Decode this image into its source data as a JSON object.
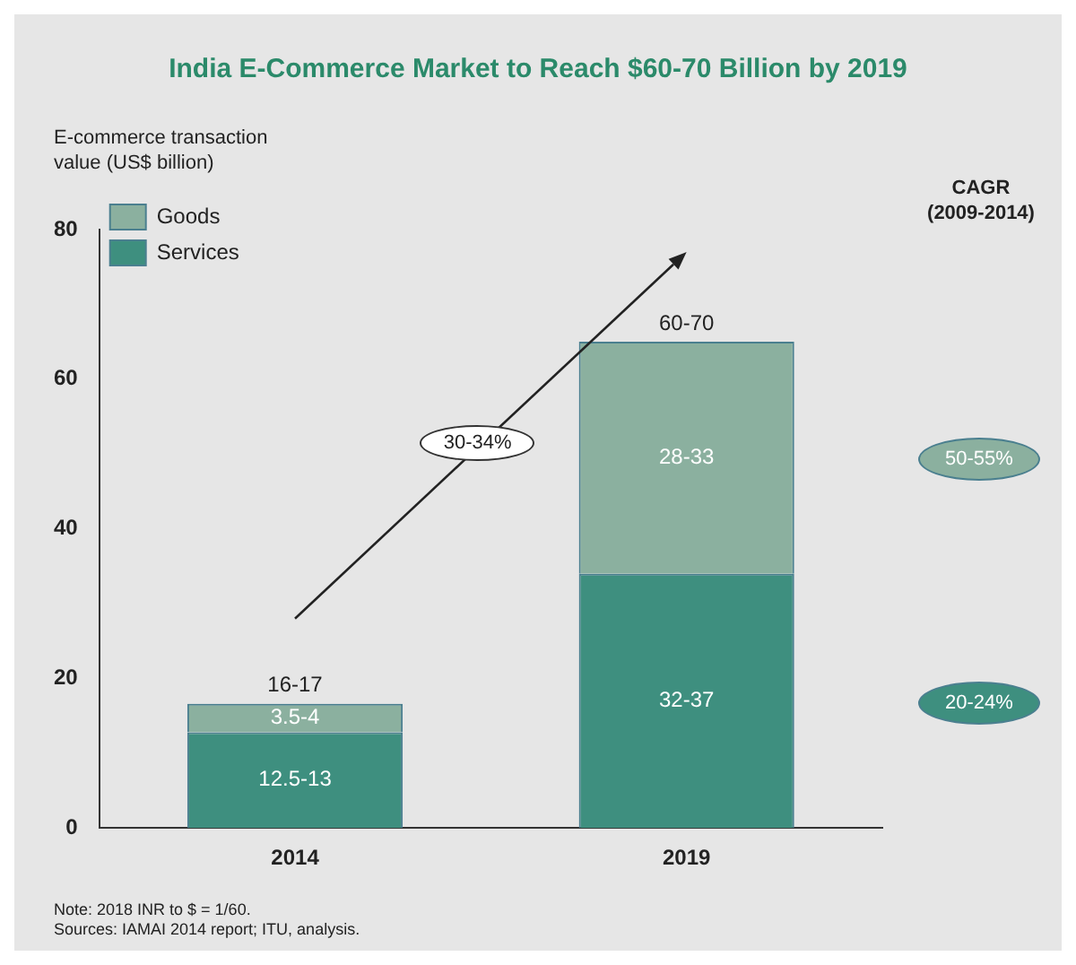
{
  "chart_data": {
    "type": "bar",
    "title": "India E-Commerce Market to Reach $60-70 Billion by 2019",
    "ylabel": "E-commerce transaction value (US$ billion)",
    "categories": [
      "2014",
      "2019"
    ],
    "stacked": true,
    "series": [
      {
        "name": "Services",
        "color": "#3e8f7f",
        "values": [
          12.8,
          34
        ],
        "value_labels": [
          "12.5-13",
          "32-37"
        ]
      },
      {
        "name": "Goods",
        "color": "#8bb09f",
        "values": [
          3.8,
          31
        ],
        "value_labels": [
          "3.5-4",
          "28-33"
        ]
      }
    ],
    "totals": [
      "16-17",
      "60-70"
    ],
    "ylim": [
      0,
      80
    ],
    "yticks": [
      0,
      20,
      40,
      60,
      80
    ],
    "grid": false,
    "legend": "top left",
    "annotations": [
      "30-34%",
      "CAGR",
      "(2009-2014)",
      "50-55%",
      "20-24%",
      "Note: 2018 INR to $ = 1/60.",
      "Sources: IAMAI 2014 report; ITU, analysis."
    ]
  }
}
